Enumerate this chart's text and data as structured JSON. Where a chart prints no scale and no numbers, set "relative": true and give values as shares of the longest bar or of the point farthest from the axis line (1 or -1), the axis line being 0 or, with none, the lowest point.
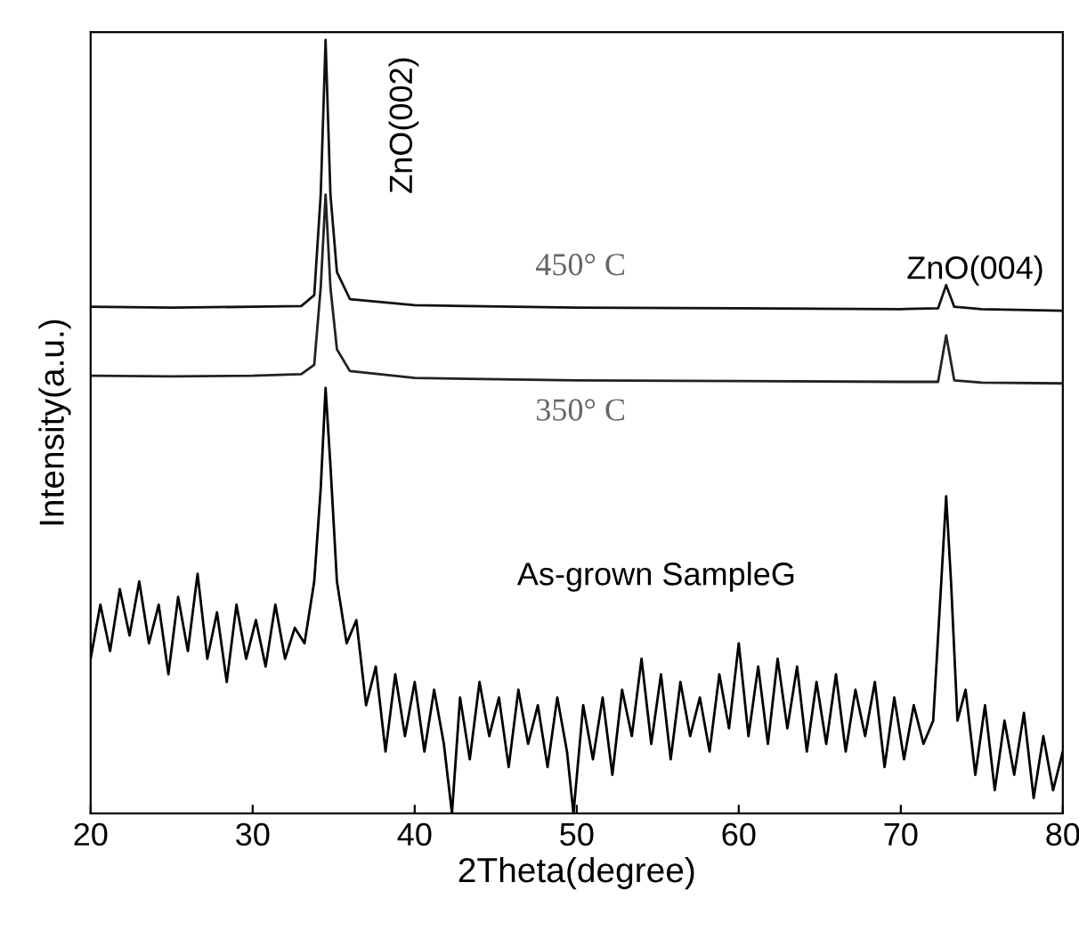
{
  "chart_data": {
    "type": "line",
    "relative": true,
    "xlabel": "2Theta(degree)",
    "ylabel": "Intensity(a.u.)",
    "xlim": [
      20,
      80
    ],
    "xticks": [
      20,
      30,
      40,
      50,
      60,
      70,
      80
    ],
    "tick_labels": "x",
    "grid": false,
    "legend": false,
    "marker": "none",
    "line_style": "solid",
    "series": [
      {
        "color": "#111111",
        "x": [
          20,
          25,
          30,
          33,
          33.8,
          34.2,
          34.5,
          34.8,
          35.2,
          36,
          40,
          50,
          60,
          70,
          72.3,
          72.8,
          73.3,
          75,
          80
        ],
        "values": [
          0.655,
          0.654,
          0.655,
          0.656,
          0.67,
          0.8,
          1.0,
          0.8,
          0.7,
          0.665,
          0.657,
          0.654,
          0.653,
          0.652,
          0.653,
          0.683,
          0.655,
          0.652,
          0.65
        ]
      },
      {
        "color": "#222222",
        "x": [
          20,
          25,
          30,
          33,
          33.8,
          34.2,
          34.5,
          34.8,
          35.2,
          36,
          40,
          50,
          60,
          70,
          72.3,
          72.8,
          73.3,
          75,
          80
        ],
        "values": [
          0.566,
          0.565,
          0.566,
          0.568,
          0.58,
          0.68,
          0.8,
          0.68,
          0.6,
          0.572,
          0.563,
          0.56,
          0.559,
          0.558,
          0.558,
          0.618,
          0.56,
          0.557,
          0.556
        ]
      },
      {
        "color": "#000000",
        "x": [
          20,
          20.6,
          21.2,
          21.8,
          22.4,
          23,
          23.6,
          24.2,
          24.8,
          25.4,
          26,
          26.6,
          27.2,
          27.8,
          28.4,
          29,
          29.6,
          30.2,
          30.8,
          31.4,
          32,
          32.6,
          33.2,
          33.8,
          34.2,
          34.5,
          34.8,
          35.2,
          35.8,
          36.4,
          37,
          37.6,
          38.2,
          38.8,
          39.4,
          40,
          40.6,
          41.2,
          41.8,
          42.3,
          42.8,
          43.4,
          44,
          44.6,
          45.2,
          45.8,
          46.4,
          47,
          47.6,
          48.2,
          48.8,
          49.4,
          49.8,
          50.4,
          51,
          51.6,
          52.2,
          52.8,
          53.4,
          54,
          54.6,
          55.2,
          55.8,
          56.4,
          57,
          57.6,
          58.2,
          58.8,
          59.4,
          60,
          60.6,
          61.2,
          61.8,
          62.4,
          63,
          63.6,
          64.2,
          64.8,
          65.4,
          66,
          66.6,
          67.2,
          67.8,
          68.4,
          69,
          69.6,
          70.2,
          70.8,
          71.4,
          72,
          72.5,
          72.8,
          73.1,
          73.5,
          74,
          74.6,
          75.2,
          75.8,
          76.4,
          77,
          77.6,
          78.2,
          78.8,
          79.4,
          80
        ],
        "values": [
          0.2,
          0.27,
          0.21,
          0.29,
          0.23,
          0.3,
          0.22,
          0.27,
          0.18,
          0.28,
          0.21,
          0.31,
          0.2,
          0.26,
          0.17,
          0.27,
          0.2,
          0.25,
          0.19,
          0.27,
          0.2,
          0.24,
          0.22,
          0.3,
          0.42,
          0.55,
          0.45,
          0.3,
          0.22,
          0.25,
          0.14,
          0.19,
          0.08,
          0.18,
          0.1,
          0.17,
          0.08,
          0.16,
          0.09,
          0.0,
          0.15,
          0.07,
          0.17,
          0.1,
          0.15,
          0.06,
          0.16,
          0.09,
          0.14,
          0.06,
          0.15,
          0.08,
          0.0,
          0.14,
          0.07,
          0.15,
          0.05,
          0.16,
          0.1,
          0.2,
          0.09,
          0.18,
          0.07,
          0.17,
          0.1,
          0.15,
          0.08,
          0.18,
          0.11,
          0.22,
          0.1,
          0.19,
          0.09,
          0.2,
          0.11,
          0.19,
          0.08,
          0.17,
          0.09,
          0.18,
          0.08,
          0.16,
          0.1,
          0.17,
          0.06,
          0.15,
          0.07,
          0.14,
          0.09,
          0.12,
          0.3,
          0.41,
          0.3,
          0.12,
          0.16,
          0.05,
          0.14,
          0.03,
          0.12,
          0.05,
          0.13,
          0.02,
          0.1,
          0.03,
          0.08
        ]
      }
    ],
    "annotations": [
      "ZnO(002)",
      "ZnO(004)",
      "450° C",
      "350° C",
      "As-grown SampleG"
    ]
  }
}
